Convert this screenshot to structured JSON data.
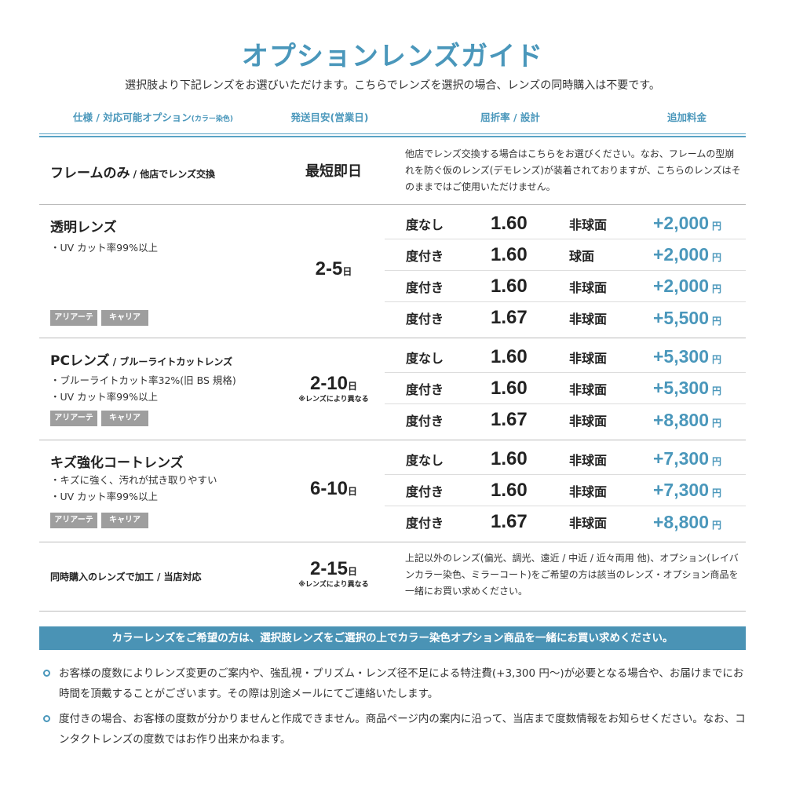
{
  "title": "オプションレンズガイド",
  "subtitle": "選択肢より下記レンズをお選びいただけます。こちらでレンズを選択の場合、レンズの同時購入は不要です。",
  "headers": {
    "spec": "仕様 / 対応可能オプション",
    "spec_small": "(カラー染色)",
    "shipping": "発送目安(営業日)",
    "index": "屈折率 / 設計",
    "price": "追加料金"
  },
  "rows": [
    {
      "name": "フレームのみ",
      "name_sub": " / 他店でレンズ交換",
      "shipping": "最短即日",
      "description": "他店でレンズ交換する場合はこちらをお選びください。なお、フレームの型崩れを防ぐ仮のレンズ(デモレンズ)が装着されておりますが、こちらのレンズはそのままではご使用いただけません。"
    },
    {
      "name": "透明レンズ",
      "features": [
        "・UV カット率99%以上"
      ],
      "tags": [
        "アリアーテ",
        "キャリア"
      ],
      "shipping": "2-5",
      "shipping_unit": "日",
      "options": [
        {
          "type": "度なし",
          "index": "1.60",
          "design": "非球面",
          "price": "+2,000",
          "unit": "円"
        },
        {
          "type": "度付き",
          "index": "1.60",
          "design": "球面",
          "price": "+2,000",
          "unit": "円"
        },
        {
          "type": "度付き",
          "index": "1.60",
          "design": "非球面",
          "price": "+2,000",
          "unit": "円"
        },
        {
          "type": "度付き",
          "index": "1.67",
          "design": "非球面",
          "price": "+5,500",
          "unit": "円"
        }
      ]
    },
    {
      "name": "PCレンズ",
      "name_sub": " / ブルーライトカットレンズ",
      "features": [
        "・ブルーライトカット率32%(旧 BS 規格)",
        "・UV カット率99%以上"
      ],
      "tags": [
        "アリアーテ",
        "キャリア"
      ],
      "shipping": "2-10",
      "shipping_unit": "日",
      "shipping_note": "※レンズにより異なる",
      "options": [
        {
          "type": "度なし",
          "index": "1.60",
          "design": "非球面",
          "price": "+5,300",
          "unit": "円"
        },
        {
          "type": "度付き",
          "index": "1.60",
          "design": "非球面",
          "price": "+5,300",
          "unit": "円"
        },
        {
          "type": "度付き",
          "index": "1.67",
          "design": "非球面",
          "price": "+8,800",
          "unit": "円"
        }
      ]
    },
    {
      "name": "キズ強化コートレンズ",
      "features": [
        "・キズに強く、汚れが拭き取りやすい",
        "・UV カット率99%以上"
      ],
      "tags": [
        "アリアーテ",
        "キャリア"
      ],
      "shipping": "6-10",
      "shipping_unit": "日",
      "options": [
        {
          "type": "度なし",
          "index": "1.60",
          "design": "非球面",
          "price": "+7,300",
          "unit": "円"
        },
        {
          "type": "度付き",
          "index": "1.60",
          "design": "非球面",
          "price": "+7,300",
          "unit": "円"
        },
        {
          "type": "度付き",
          "index": "1.67",
          "design": "非球面",
          "price": "+8,800",
          "unit": "円"
        }
      ]
    },
    {
      "name": "同時購入のレンズで加工",
      "name_sub": " / 当店対応",
      "shipping": "2-15",
      "shipping_unit": "日",
      "shipping_note": "※レンズにより異なる",
      "description": "上記以外のレンズ(偏光、調光、遠近 / 中近 / 近々両用 他)、オプション(レイバンカラー染色、ミラーコート)をご希望の方は該当のレンズ・オプション商品を一緒にお買い求めください。"
    }
  ],
  "banner": "カラーレンズをご希望の方は、選択肢レンズをご選択の上でカラー染色オプション商品を一緒にお買い求めください。",
  "notes": [
    "お客様の度数によりレンズ変更のご案内や、強乱視・プリズム・レンズ径不足による特注費(+3,300 円〜)が必要となる場合や、お届けまでにお時間を頂戴することがございます。その際は別途メールにてご連絡いたします。",
    "度付きの場合、お客様の度数が分かりませんと作成できません。商品ページ内の案内に沿って、当店まで度数情報をお知らせください。なお、コンタクトレンズの度数ではお作り出来かねます。"
  ],
  "colors": {
    "accent": "#4a97bb",
    "banner": "#4a93b5",
    "tag": "#9e9e9e"
  }
}
